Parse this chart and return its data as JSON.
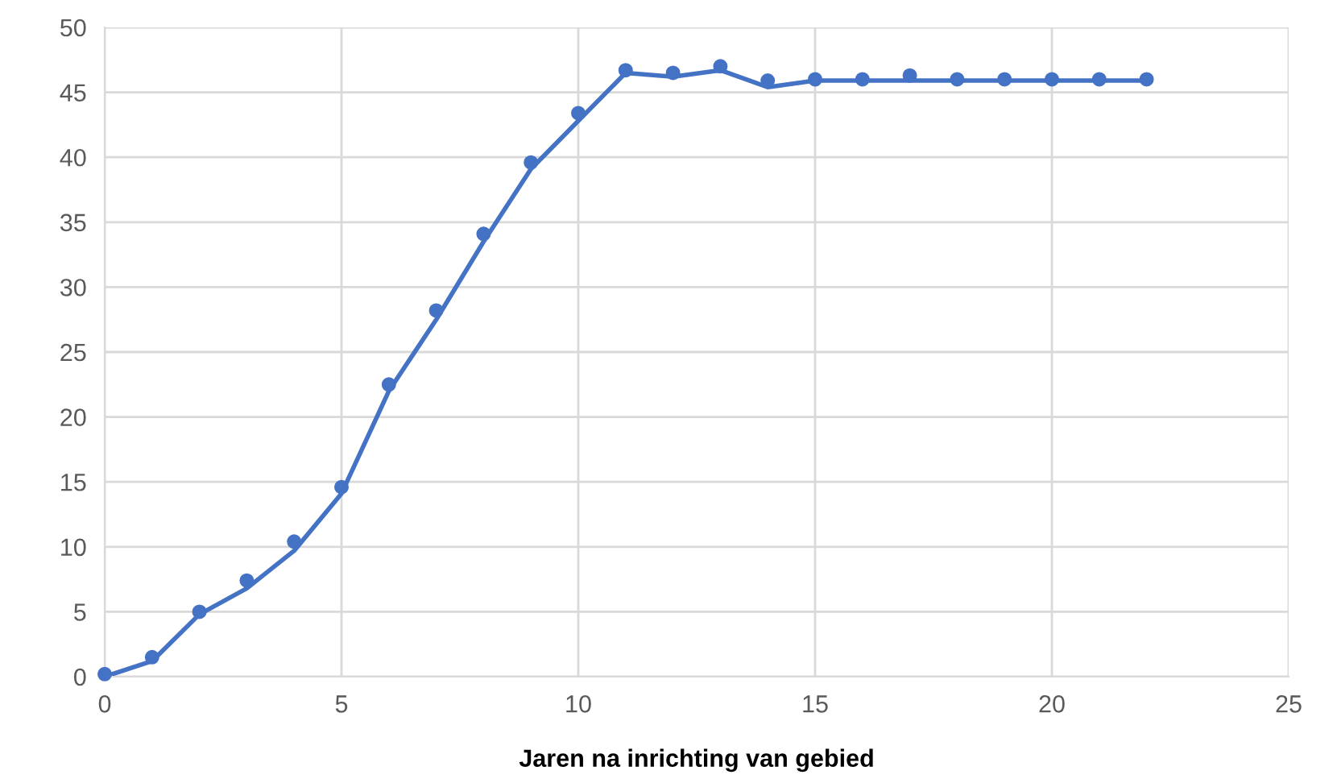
{
  "chart_data": {
    "type": "scatter",
    "xlabel": "Jaren na inrichting van gebied",
    "xlim": [
      0,
      25
    ],
    "xticks": [
      0,
      5,
      10,
      15,
      20,
      25
    ],
    "ylim": [
      0,
      50
    ],
    "yticks": [
      0,
      5,
      10,
      15,
      20,
      25,
      30,
      35,
      40,
      45,
      50
    ],
    "grid": true,
    "series": [
      {
        "marker": "circle",
        "color": "#4472c4",
        "x": [
          0,
          1,
          2,
          3,
          4,
          5,
          6,
          7,
          8,
          9,
          10,
          11,
          12,
          13,
          14,
          15,
          16,
          17,
          18,
          19,
          20,
          21,
          22
        ],
        "values": [
          0.2,
          1.5,
          5.0,
          7.4,
          10.4,
          14.6,
          22.5,
          28.2,
          34.1,
          39.6,
          43.4,
          46.7,
          46.5,
          47.0,
          45.9,
          46.0,
          46.0,
          46.3,
          46.0,
          46.0,
          46.0,
          46.0,
          46.0
        ]
      },
      {
        "type": "line",
        "marker": "none",
        "color": "#4472c4",
        "line_style": "solid",
        "x": [
          0,
          1,
          2,
          3,
          4,
          5,
          6,
          7,
          8,
          9,
          10,
          11,
          12,
          13,
          14,
          15,
          16,
          17,
          18,
          19,
          20,
          21,
          22
        ],
        "values": [
          0,
          1.2,
          4.8,
          6.8,
          9.7,
          14.1,
          22.0,
          27.5,
          33.5,
          39.1,
          42.8,
          46.5,
          46.2,
          46.7,
          45.4,
          45.9,
          45.9,
          45.9,
          45.9,
          45.9,
          45.9,
          45.9,
          45.9
        ]
      }
    ]
  }
}
